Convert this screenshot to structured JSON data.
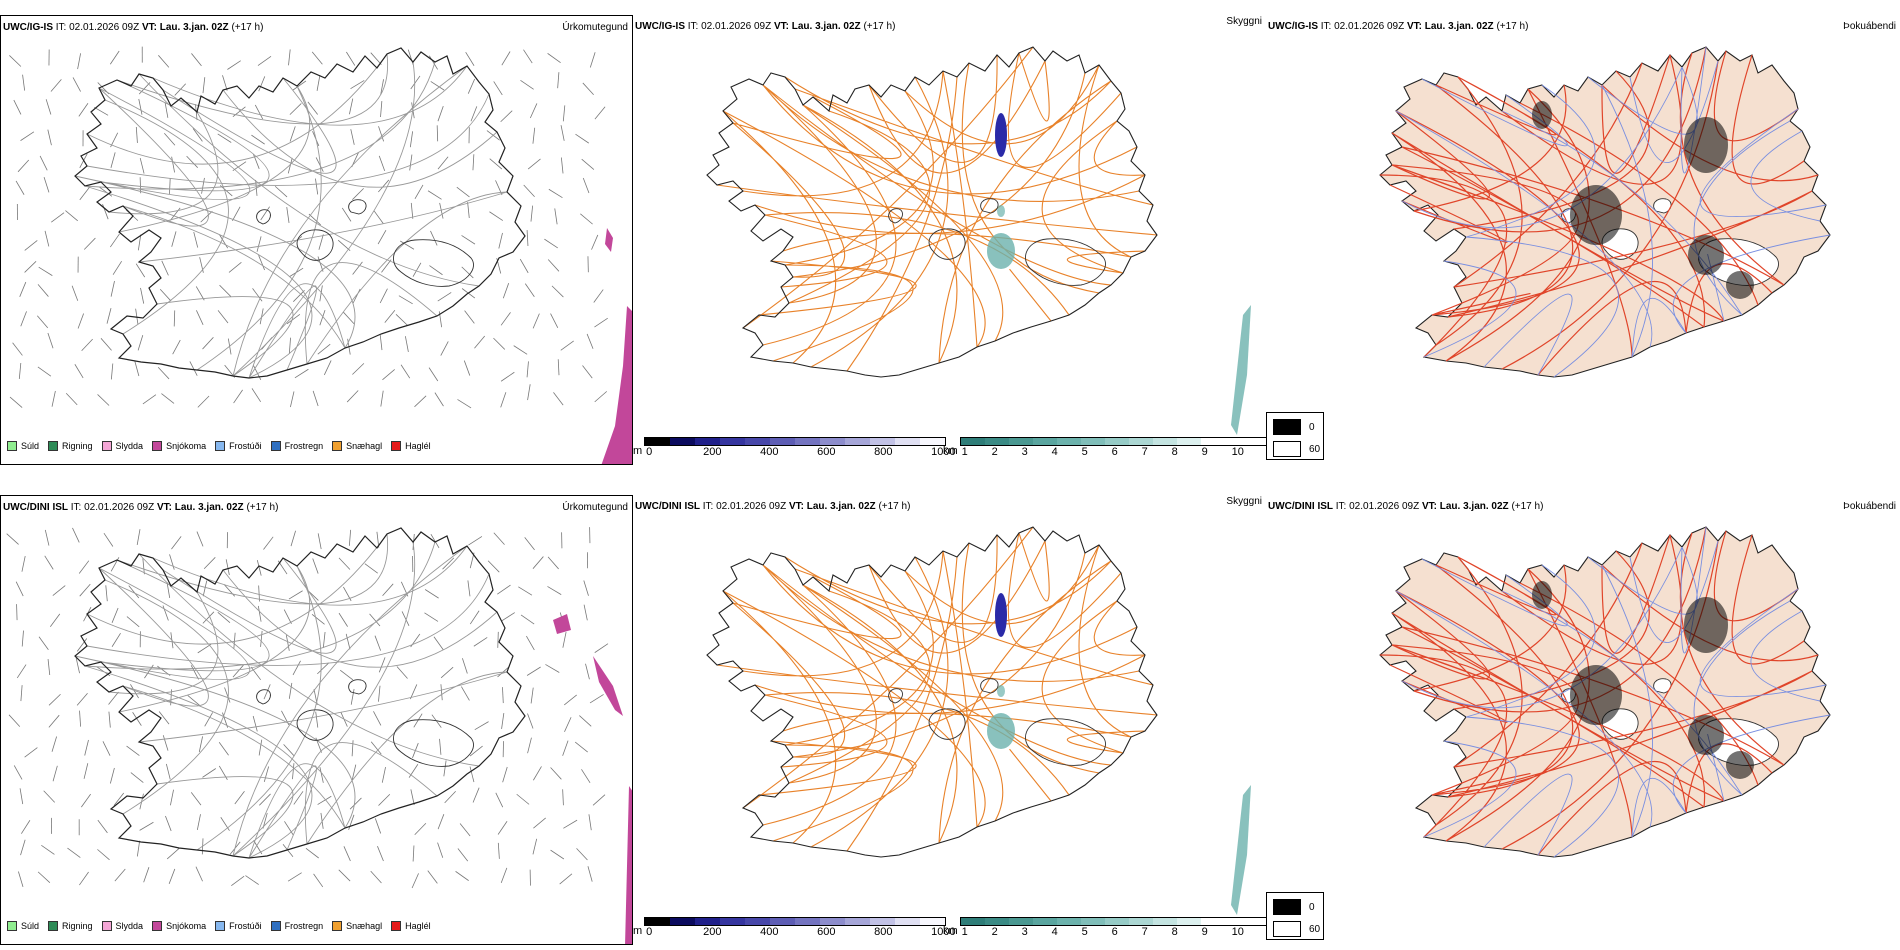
{
  "rows": [
    {
      "model": "UWC/IG-IS",
      "it_label": "IT:",
      "it_value": "02.01.2026 09Z",
      "vt_label": "VT:",
      "vt_value": "Lau. 3.jan. 02Z",
      "lead": "(+17 h)"
    },
    {
      "model": "UWC/DINI ISL",
      "it_label": "IT:",
      "it_value": "02.01.2026 09Z",
      "vt_label": "VT:",
      "vt_value": "Lau. 3.jan. 02Z",
      "lead": "(+17 h)"
    }
  ],
  "panels": {
    "precip": {
      "title": "Úrkomutegund"
    },
    "cloud": {
      "title": "Skyggni"
    },
    "fog": {
      "title": "Þokuábendi"
    }
  },
  "precip_legend": [
    {
      "label": "Súld",
      "color": "#90ee90"
    },
    {
      "label": "Rigning",
      "color": "#2e8b57"
    },
    {
      "label": "Slydda",
      "color": "#f4a6d6"
    },
    {
      "label": "Snjókoma",
      "color": "#c2479a"
    },
    {
      "label": "Frostúði",
      "color": "#87b8ef"
    },
    {
      "label": "Frostregn",
      "color": "#2f6fc0"
    },
    {
      "label": "Snæhagl",
      "color": "#f0a030"
    },
    {
      "label": "Haglél",
      "color": "#e51b1b"
    }
  ],
  "height_bar": {
    "unit": "m",
    "ticks": [
      "0",
      "200",
      "400",
      "600",
      "800",
      "1000"
    ],
    "colors": [
      "#000000",
      "#0b0b5e",
      "#1f1f8a",
      "#35359f",
      "#4747a9",
      "#5d5db4",
      "#7474c0",
      "#8d8dcc",
      "#a6a6d8",
      "#c2c2e6",
      "#e0e0f3",
      "#f7f7fd"
    ]
  },
  "vis_bar": {
    "unit": "km",
    "ticks": [
      "1",
      "2",
      "3",
      "4",
      "5",
      "6",
      "7",
      "8",
      "9",
      "10"
    ],
    "colors": [
      "#2e7d78",
      "#3a8a84",
      "#4a9891",
      "#5aa59f",
      "#6cb2ac",
      "#80beb9",
      "#96cbc6",
      "#acd7d3",
      "#c4e4e1",
      "#ddf1ef",
      "#ffffff",
      "#ffffff",
      "#ffffff"
    ]
  },
  "fog_legend": {
    "high": "0",
    "low": "60",
    "high_color": "#000000",
    "low_color": "#ffffff"
  },
  "colors": {
    "land": "#f5e0d0",
    "roads_orange": "#e8822a",
    "roads_red": "#e0452a",
    "rivers": "#7a8fe0",
    "snow": "#c2479a"
  }
}
